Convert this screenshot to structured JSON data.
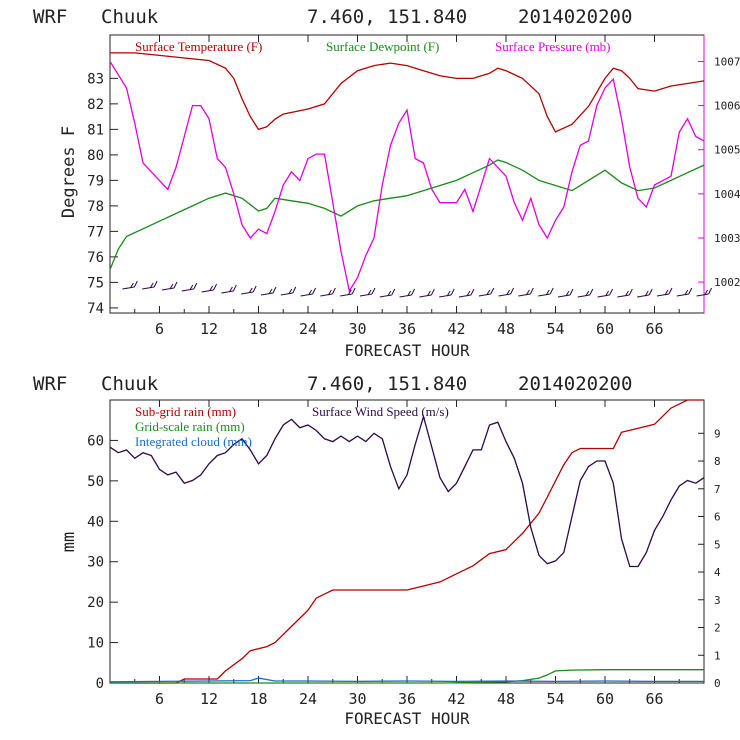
{
  "header_top": {
    "model": "WRF",
    "station": "Chuuk",
    "coords": "7.460, 151.840",
    "init": "2014020200"
  },
  "header_bottom": {
    "model": "WRF",
    "station": "Chuuk",
    "coords": "7.460, 151.840",
    "init": "2014020200"
  },
  "colors": {
    "temp": "#b40000",
    "dew": "#1a8a1a",
    "pres": "#e000e0",
    "wind": "#2a0a4a",
    "rain_sub": "#b40000",
    "rain_grid": "#1a8a1a",
    "cloud": "#1a6ad0",
    "barb": "#2a0a4a"
  },
  "chart_data": [
    {
      "type": "line",
      "xlabel": "FORECAST HOUR",
      "ylabel": "Degrees F",
      "y2label": "",
      "xlim": [
        0,
        72
      ],
      "ylim": [
        73.8,
        84.7
      ],
      "y2lim": [
        1001.3,
        1007.6
      ],
      "xticks": [
        6,
        12,
        18,
        24,
        30,
        36,
        42,
        48,
        54,
        60,
        66
      ],
      "yticks": [
        74,
        75,
        76,
        77,
        78,
        79,
        80,
        81,
        82,
        83
      ],
      "y2ticks": [
        1002,
        1003,
        1004,
        1005,
        1006,
        1007
      ],
      "legend": [
        "Surface Temperature (F)",
        "Surface Dewpoint (F)",
        "Surface Pressure (mb)"
      ],
      "series": [
        {
          "name": "Surface Temperature (F)",
          "axis": "left",
          "x": [
            0,
            3,
            6,
            9,
            12,
            14,
            15,
            16,
            17,
            18,
            19,
            20,
            21,
            24,
            26,
            28,
            30,
            32,
            34,
            36,
            38,
            40,
            42,
            44,
            46,
            47,
            48,
            50,
            52,
            53,
            54,
            56,
            58,
            60,
            61,
            62,
            63,
            64,
            66,
            68,
            70,
            72
          ],
          "y": [
            84.0,
            84.0,
            83.9,
            83.8,
            83.7,
            83.4,
            83.0,
            82.2,
            81.5,
            81.0,
            81.1,
            81.4,
            81.6,
            81.8,
            82.0,
            82.8,
            83.3,
            83.5,
            83.6,
            83.5,
            83.3,
            83.1,
            83.0,
            83.0,
            83.2,
            83.4,
            83.3,
            83.0,
            82.4,
            81.5,
            80.9,
            81.2,
            81.9,
            83.0,
            83.4,
            83.3,
            83.0,
            82.6,
            82.5,
            82.7,
            82.8,
            82.9
          ]
        },
        {
          "name": "Surface Dewpoint (F)",
          "axis": "left",
          "x": [
            0,
            1,
            2,
            4,
            6,
            8,
            10,
            12,
            14,
            16,
            18,
            19,
            20,
            22,
            24,
            26,
            28,
            30,
            32,
            34,
            36,
            38,
            40,
            42,
            44,
            46,
            47,
            48,
            50,
            52,
            54,
            56,
            58,
            60,
            62,
            64,
            66,
            68,
            70,
            72
          ],
          "y": [
            75.5,
            76.3,
            76.8,
            77.1,
            77.4,
            77.7,
            78.0,
            78.3,
            78.5,
            78.3,
            77.8,
            77.9,
            78.3,
            78.2,
            78.1,
            77.9,
            77.6,
            78.0,
            78.2,
            78.3,
            78.4,
            78.6,
            78.8,
            79.0,
            79.3,
            79.6,
            79.8,
            79.7,
            79.4,
            79.0,
            78.8,
            78.6,
            79.0,
            79.4,
            78.9,
            78.6,
            78.7,
            79.0,
            79.3,
            79.6
          ]
        },
        {
          "name": "Surface Pressure (mb)",
          "axis": "right",
          "x": [
            0,
            1,
            2,
            3,
            4,
            5,
            6,
            7,
            8,
            9,
            10,
            11,
            12,
            13,
            14,
            15,
            16,
            17,
            18,
            19,
            20,
            21,
            22,
            23,
            24,
            25,
            26,
            27,
            28,
            29,
            30,
            31,
            32,
            33,
            34,
            35,
            36,
            37,
            38,
            39,
            40,
            41,
            42,
            43,
            44,
            45,
            46,
            47,
            48,
            49,
            50,
            51,
            52,
            53,
            54,
            55,
            56,
            57,
            58,
            59,
            60,
            61,
            62,
            63,
            64,
            65,
            66,
            67,
            68,
            69,
            70,
            71,
            72
          ],
          "y": [
            1007.0,
            1006.7,
            1006.4,
            1005.6,
            1004.7,
            1004.5,
            1004.3,
            1004.1,
            1004.6,
            1005.3,
            1006.0,
            1006.0,
            1005.7,
            1004.8,
            1004.6,
            1004.0,
            1003.3,
            1003.0,
            1003.2,
            1003.1,
            1003.6,
            1004.2,
            1004.5,
            1004.3,
            1004.8,
            1004.9,
            1004.9,
            1003.8,
            1002.7,
            1001.8,
            1002.1,
            1002.6,
            1003.0,
            1004.2,
            1005.1,
            1005.6,
            1005.9,
            1004.8,
            1004.7,
            1004.1,
            1003.8,
            1003.8,
            1003.8,
            1004.1,
            1003.6,
            1004.2,
            1004.8,
            1004.6,
            1004.4,
            1003.8,
            1003.4,
            1003.9,
            1003.3,
            1003.0,
            1003.4,
            1003.7,
            1004.5,
            1005.1,
            1005.2,
            1006.0,
            1006.4,
            1006.6,
            1005.7,
            1004.6,
            1003.9,
            1003.7,
            1004.2,
            1004.3,
            1004.4,
            1005.4,
            1005.7,
            1005.3,
            1005.2
          ]
        }
      ]
    },
    {
      "type": "line",
      "xlabel": "FORECAST HOUR",
      "ylabel": "mm",
      "xlim": [
        0,
        72
      ],
      "ylim": [
        0,
        70
      ],
      "y2lim": [
        0,
        10.2
      ],
      "xticks": [
        6,
        12,
        18,
        24,
        30,
        36,
        42,
        48,
        54,
        60,
        66
      ],
      "yticks": [
        0,
        10,
        20,
        30,
        40,
        50,
        60
      ],
      "y2ticks": [
        0,
        1,
        2,
        3,
        4,
        5,
        6,
        7,
        8,
        9
      ],
      "legend": [
        "Sub-grid rain (mm)",
        "Surface Wind Speed (m/s)",
        "Grid-scale rain (mm)",
        "Integrated cloud (mm)"
      ],
      "series": [
        {
          "name": "Sub-grid rain (mm)",
          "axis": "left",
          "x": [
            0,
            8,
            9,
            13,
            14,
            16,
            17,
            19,
            20,
            22,
            24,
            25,
            26,
            27,
            28,
            30,
            36,
            37,
            38,
            40,
            42,
            44,
            46,
            48,
            50,
            52,
            53,
            54,
            55,
            56,
            57,
            60,
            61,
            62,
            64,
            66,
            67,
            68,
            70,
            72
          ],
          "y": [
            0,
            0,
            1,
            1,
            3,
            6,
            8,
            9,
            10,
            14,
            18,
            21,
            22,
            23,
            23,
            23,
            23,
            23.5,
            24,
            25,
            27,
            29,
            32,
            33,
            37,
            42,
            46,
            50,
            54,
            57,
            58,
            58,
            58,
            62,
            63,
            64,
            66,
            68,
            70,
            70
          ]
        },
        {
          "name": "Surface Wind Speed (m/s)",
          "axis": "right",
          "x": [
            0,
            1,
            2,
            3,
            4,
            5,
            6,
            7,
            8,
            9,
            10,
            11,
            12,
            13,
            14,
            15,
            16,
            17,
            18,
            19,
            20,
            21,
            22,
            23,
            24,
            25,
            26,
            27,
            28,
            29,
            30,
            31,
            32,
            33,
            34,
            35,
            36,
            37,
            38,
            39,
            40,
            41,
            42,
            43,
            44,
            45,
            46,
            47,
            48,
            49,
            50,
            51,
            52,
            53,
            54,
            55,
            56,
            57,
            58,
            59,
            60,
            61,
            62,
            63,
            64,
            65,
            66,
            67,
            68,
            69,
            70,
            71,
            72
          ],
          "y": [
            8.5,
            8.3,
            8.4,
            8.1,
            8.3,
            8.2,
            7.7,
            7.5,
            7.6,
            7.2,
            7.3,
            7.5,
            7.9,
            8.2,
            8.3,
            8.6,
            8.8,
            8.4,
            7.9,
            8.2,
            8.8,
            9.3,
            9.5,
            9.2,
            9.3,
            9.1,
            8.8,
            8.7,
            8.9,
            8.7,
            8.9,
            8.7,
            9.0,
            8.8,
            7.8,
            7.0,
            7.5,
            8.6,
            9.6,
            8.5,
            7.4,
            6.9,
            7.2,
            7.8,
            8.4,
            8.4,
            9.3,
            9.4,
            8.7,
            8.1,
            7.2,
            5.6,
            4.6,
            4.3,
            4.4,
            4.7,
            6.0,
            7.3,
            7.8,
            8.0,
            8.0,
            7.2,
            5.2,
            4.2,
            4.2,
            4.7,
            5.5,
            6.0,
            6.6,
            7.1,
            7.3,
            7.2,
            7.4
          ]
        },
        {
          "name": "Grid-scale rain (mm)",
          "axis": "left",
          "x": [
            0,
            40,
            46,
            48,
            50,
            52,
            53,
            54,
            56,
            60,
            66,
            72
          ],
          "y": [
            0,
            0,
            0.2,
            0.3,
            0.6,
            1.2,
            2,
            3,
            3.2,
            3.3,
            3.3,
            3.3
          ]
        },
        {
          "name": "Integrated cloud (mm)",
          "axis": "left",
          "x": [
            0,
            6,
            12,
            17,
            18,
            20,
            24,
            30,
            36,
            42,
            48,
            54,
            60,
            66,
            72
          ],
          "y": [
            0.3,
            0.4,
            0.5,
            0.6,
            1.2,
            0.5,
            0.5,
            0.4,
            0.5,
            0.4,
            0.5,
            0.4,
            0.5,
            0.4,
            0.4
          ]
        }
      ]
    }
  ]
}
